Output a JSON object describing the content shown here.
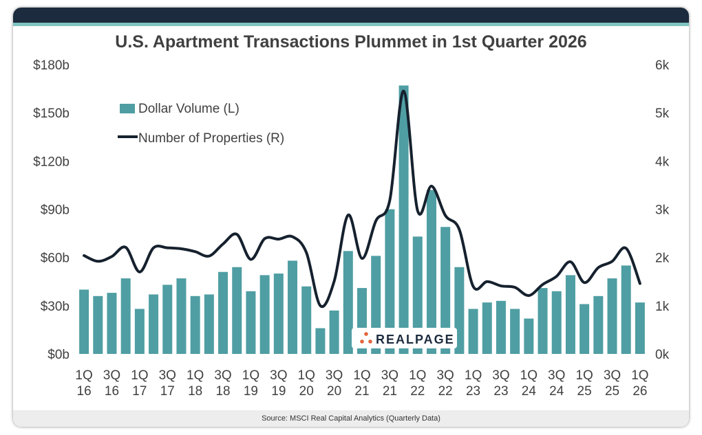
{
  "title": "U.S. Apartment Transactions Plummet in 1st Quarter 2026",
  "source": "Source: MSCI Real Capital Analytics (Quarterly Data)",
  "logo": {
    "text": "REALPAGE",
    "icon": "dots-icon",
    "color": "#e2643a",
    "text_color": "#1c2b3e"
  },
  "colors": {
    "bar": "#4f9ea3",
    "line": "#16212e",
    "header": "#1c2b3e",
    "stripe": "#7fc3c0"
  },
  "chart_data": {
    "type": "bar+line",
    "x": [
      "1Q16",
      "2Q16",
      "3Q16",
      "4Q16",
      "1Q17",
      "2Q17",
      "3Q17",
      "4Q17",
      "1Q18",
      "2Q18",
      "3Q18",
      "4Q18",
      "1Q19",
      "2Q19",
      "3Q19",
      "4Q19",
      "1Q20",
      "2Q20",
      "3Q20",
      "4Q20",
      "1Q21",
      "2Q21",
      "3Q21",
      "4Q21",
      "1Q22",
      "2Q22",
      "3Q22",
      "4Q22",
      "1Q23",
      "2Q23",
      "3Q23",
      "4Q23",
      "1Q24",
      "2Q24",
      "3Q24",
      "4Q24",
      "1Q25",
      "2Q25",
      "3Q25",
      "4Q25",
      "1Q26"
    ],
    "tick_labels": [
      {
        "q": "1Q",
        "yr": "16"
      },
      {
        "q": "3Q",
        "yr": "16"
      },
      {
        "q": "1Q",
        "yr": "17"
      },
      {
        "q": "3Q",
        "yr": "17"
      },
      {
        "q": "1Q",
        "yr": "18"
      },
      {
        "q": "3Q",
        "yr": "18"
      },
      {
        "q": "1Q",
        "yr": "19"
      },
      {
        "q": "3Q",
        "yr": "19"
      },
      {
        "q": "1Q",
        "yr": "20"
      },
      {
        "q": "3Q",
        "yr": "20"
      },
      {
        "q": "1Q",
        "yr": "21"
      },
      {
        "q": "3Q",
        "yr": "21"
      },
      {
        "q": "1Q",
        "yr": "22"
      },
      {
        "q": "3Q",
        "yr": "22"
      },
      {
        "q": "1Q",
        "yr": "23"
      },
      {
        "q": "3Q",
        "yr": "23"
      },
      {
        "q": "1Q",
        "yr": "24"
      },
      {
        "q": "3Q",
        "yr": "24"
      },
      {
        "q": "1Q",
        "yr": "25"
      },
      {
        "q": "3Q",
        "yr": "25"
      },
      {
        "q": "1Q",
        "yr": "26"
      }
    ],
    "series": [
      {
        "name": "Dollar Volume (L)",
        "type": "bar",
        "axis": "left",
        "values": [
          40,
          36,
          38,
          47,
          28,
          37,
          43,
          47,
          36,
          37,
          51,
          54,
          39,
          49,
          50,
          58,
          42,
          16,
          27,
          64,
          41,
          61,
          90,
          167,
          73,
          102,
          79,
          54,
          28,
          32,
          33,
          28,
          22,
          41,
          39,
          49,
          31,
          36,
          47,
          55,
          32
        ]
      },
      {
        "name": "Number of Properties (R)",
        "type": "line",
        "axis": "right",
        "values": [
          2040,
          1920,
          2020,
          2210,
          1700,
          2200,
          2200,
          2180,
          2120,
          2030,
          2280,
          2480,
          1960,
          2390,
          2380,
          2430,
          2100,
          1000,
          1510,
          2880,
          1980,
          2760,
          3190,
          5450,
          2970,
          3480,
          2870,
          2580,
          1400,
          1500,
          1410,
          1380,
          1210,
          1440,
          1610,
          1910,
          1480,
          1790,
          1920,
          2190,
          1460
        ]
      }
    ],
    "y_left": {
      "ticks": [
        "$0b",
        "$30b",
        "$60b",
        "$90b",
        "$120b",
        "$150b",
        "$180b"
      ],
      "ylim": [
        0,
        180
      ]
    },
    "y_right": {
      "ticks": [
        "0k",
        "1k",
        "2k",
        "3k",
        "4k",
        "5k",
        "6k"
      ],
      "ylim": [
        0,
        6000
      ]
    },
    "legend_position": "top-left",
    "grid": false
  }
}
